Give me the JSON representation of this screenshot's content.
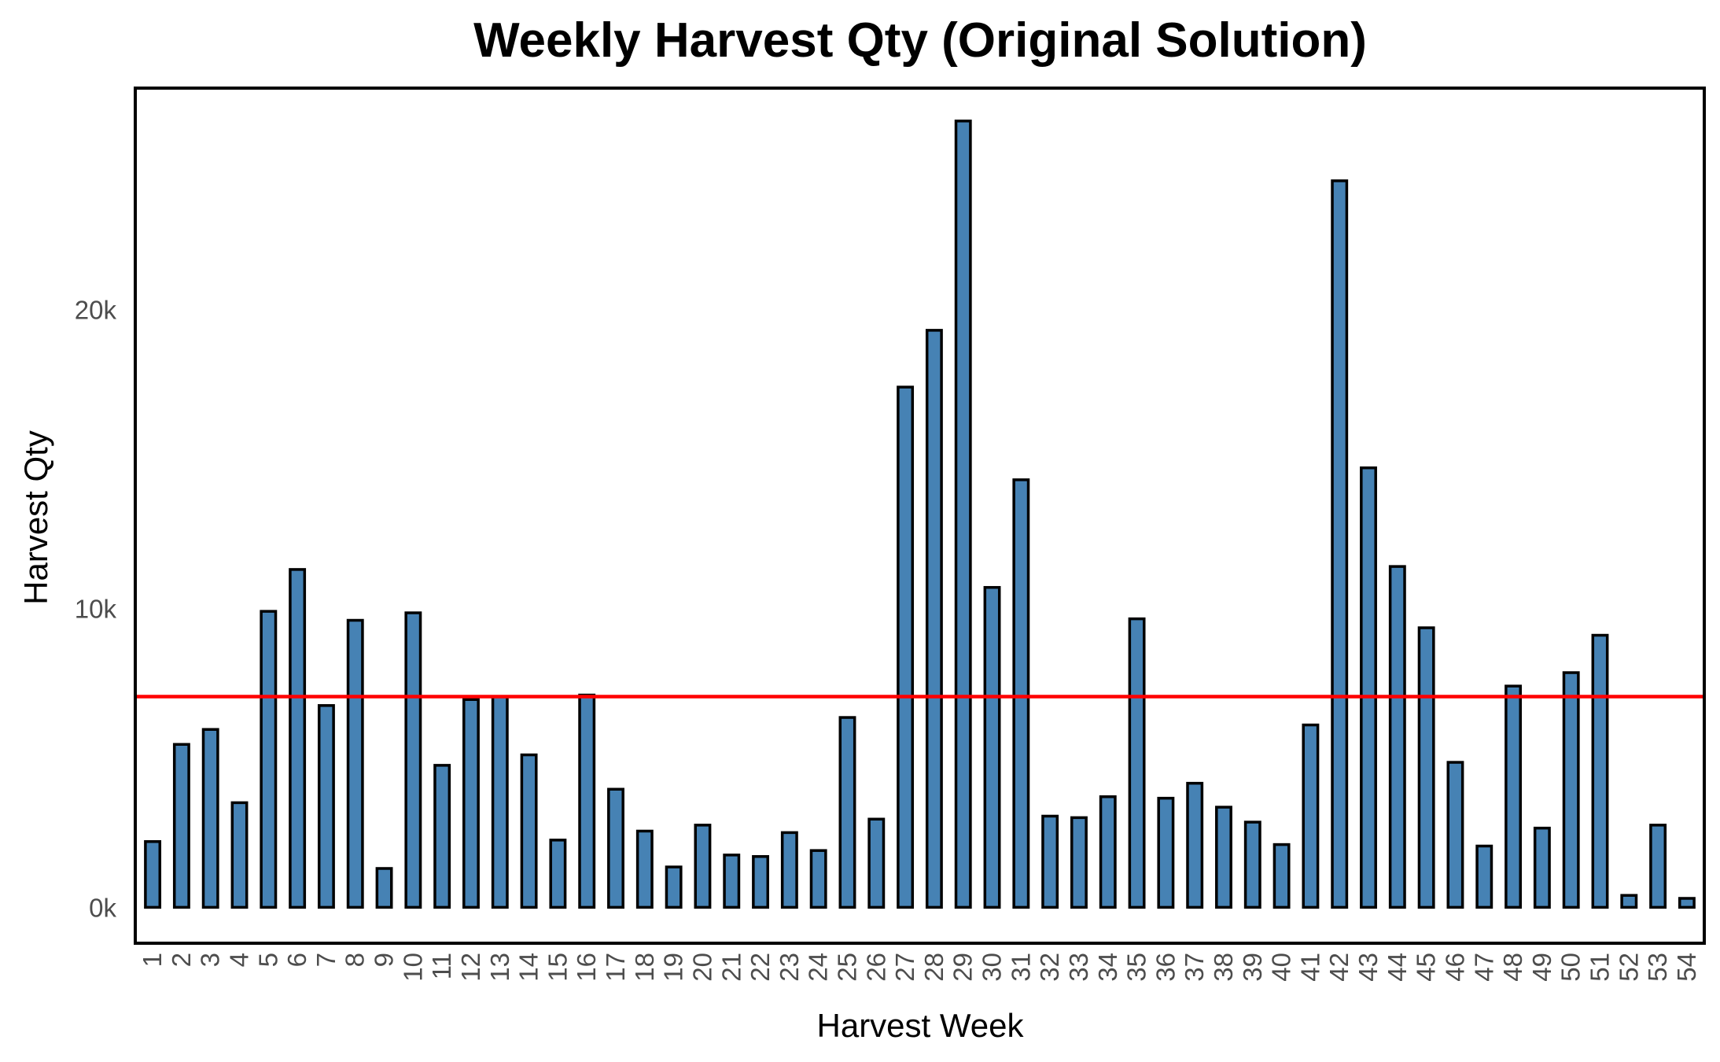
{
  "chart_data": {
    "type": "bar",
    "title": "Weekly Harvest Qty (Original Solution)",
    "xlabel": "Harvest Week",
    "ylabel": "Harvest Qty",
    "categories": [
      "1",
      "2",
      "3",
      "4",
      "5",
      "6",
      "7",
      "8",
      "9",
      "10",
      "11",
      "12",
      "13",
      "14",
      "15",
      "16",
      "17",
      "18",
      "19",
      "20",
      "21",
      "22",
      "23",
      "24",
      "25",
      "26",
      "27",
      "28",
      "29",
      "30",
      "31",
      "32",
      "33",
      "34",
      "35",
      "36",
      "37",
      "38",
      "39",
      "40",
      "41",
      "42",
      "43",
      "44",
      "45",
      "46",
      "47",
      "48",
      "49",
      "50",
      "51",
      "52",
      "53",
      "54"
    ],
    "values": [
      2200,
      5450,
      5950,
      3500,
      9900,
      11300,
      6750,
      9600,
      1300,
      9850,
      4750,
      6950,
      7050,
      5100,
      2250,
      7100,
      3950,
      2550,
      1350,
      2750,
      1750,
      1700,
      2500,
      1900,
      6350,
      2950,
      17400,
      19300,
      26300,
      10700,
      14300,
      3050,
      3000,
      3700,
      9650,
      3650,
      4150,
      3350,
      2850,
      2100,
      6100,
      24300,
      14700,
      11400,
      9350,
      4850,
      2050,
      7400,
      2650,
      7850,
      9100,
      400,
      2750,
      300
    ],
    "yticks": [
      0,
      10000,
      20000
    ],
    "ytick_labels": [
      "0k",
      "10k",
      "20k"
    ],
    "ylim": [
      -1200,
      27400
    ],
    "reference_line": {
      "y": 7050,
      "color": "#ff0000"
    },
    "bar_color": "#4682b4",
    "bar_edge_color": "#000000",
    "grid": false,
    "legend": "none"
  }
}
